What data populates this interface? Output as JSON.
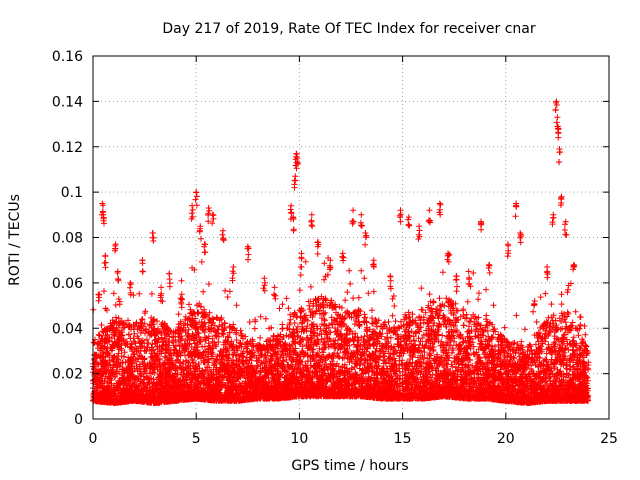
{
  "chart_data": {
    "type": "scatter",
    "title": "Day 217 of 2019, Rate Of TEC Index for receiver cnar",
    "xlabel": "GPS time / hours",
    "ylabel": "ROTI / TECUs",
    "xlim": [
      0,
      25
    ],
    "ylim": [
      0,
      0.16
    ],
    "xticks": [
      0,
      5,
      10,
      15,
      20,
      25
    ],
    "yticks": [
      0,
      0.02,
      0.04,
      0.06,
      0.08,
      0.1,
      0.12,
      0.14,
      0.16
    ],
    "xtick_labels": [
      "0",
      "5",
      "10",
      "15",
      "20",
      "25"
    ],
    "ytick_labels": [
      "0",
      "0.02",
      "0.04",
      "0.06",
      "0.08",
      "0.1",
      "0.12",
      "0.14",
      "0.16"
    ],
    "marker": "+",
    "color": "#ff0000",
    "grid": true,
    "series": [
      {
        "name": "ROTI",
        "points": [
          [
            0.1,
            0.025
          ],
          [
            0.3,
            0.055
          ],
          [
            0.45,
            0.095
          ],
          [
            0.5,
            0.09
          ],
          [
            0.6,
            0.072
          ],
          [
            1.1,
            0.077
          ],
          [
            1.2,
            0.065
          ],
          [
            1.8,
            0.06
          ],
          [
            2.4,
            0.07
          ],
          [
            2.9,
            0.082
          ],
          [
            3.3,
            0.058
          ],
          [
            3.7,
            0.064
          ],
          [
            4.3,
            0.055
          ],
          [
            4.8,
            0.094
          ],
          [
            5.0,
            0.1
          ],
          [
            5.2,
            0.085
          ],
          [
            5.4,
            0.077
          ],
          [
            5.6,
            0.093
          ],
          [
            5.8,
            0.09
          ],
          [
            6.3,
            0.083
          ],
          [
            6.8,
            0.067
          ],
          [
            7.5,
            0.076
          ],
          [
            8.3,
            0.062
          ],
          [
            8.8,
            0.058
          ],
          [
            9.6,
            0.094
          ],
          [
            9.7,
            0.089
          ],
          [
            9.8,
            0.107
          ],
          [
            9.85,
            0.117
          ],
          [
            9.9,
            0.115
          ],
          [
            10.1,
            0.073
          ],
          [
            10.6,
            0.09
          ],
          [
            10.9,
            0.078
          ],
          [
            11.5,
            0.07
          ],
          [
            12.1,
            0.073
          ],
          [
            12.6,
            0.092
          ],
          [
            13.0,
            0.09
          ],
          [
            13.2,
            0.082
          ],
          [
            13.6,
            0.07
          ],
          [
            14.4,
            0.063
          ],
          [
            14.9,
            0.092
          ],
          [
            15.3,
            0.089
          ],
          [
            15.8,
            0.085
          ],
          [
            16.3,
            0.092
          ],
          [
            16.8,
            0.095
          ],
          [
            17.2,
            0.073
          ],
          [
            17.6,
            0.063
          ],
          [
            18.2,
            0.065
          ],
          [
            18.8,
            0.087
          ],
          [
            19.2,
            0.068
          ],
          [
            20.1,
            0.077
          ],
          [
            20.5,
            0.095
          ],
          [
            20.7,
            0.082
          ],
          [
            21.4,
            0.052
          ],
          [
            22.0,
            0.067
          ],
          [
            22.3,
            0.09
          ],
          [
            22.45,
            0.14
          ],
          [
            22.5,
            0.133
          ],
          [
            22.55,
            0.128
          ],
          [
            22.6,
            0.119
          ],
          [
            22.7,
            0.098
          ],
          [
            22.9,
            0.087
          ],
          [
            23.3,
            0.068
          ],
          [
            23.6,
            0.045
          ],
          [
            23.9,
            0.032
          ]
        ],
        "dense_band_envelope": {
          "x": [
            0,
            1,
            2,
            3,
            4,
            5,
            6,
            7,
            8,
            9,
            10,
            11,
            12,
            13,
            14,
            15,
            16,
            17,
            18,
            19,
            20,
            21,
            22,
            23,
            24
          ],
          "typical_upper": [
            0.035,
            0.045,
            0.043,
            0.045,
            0.04,
            0.052,
            0.045,
            0.04,
            0.033,
            0.038,
            0.05,
            0.055,
            0.05,
            0.048,
            0.042,
            0.045,
            0.05,
            0.055,
            0.048,
            0.045,
            0.035,
            0.032,
            0.045,
            0.048,
            0.03
          ],
          "typical_lower": [
            0.008,
            0.007,
            0.008,
            0.007,
            0.008,
            0.009,
            0.008,
            0.008,
            0.009,
            0.009,
            0.01,
            0.01,
            0.01,
            0.01,
            0.009,
            0.009,
            0.009,
            0.01,
            0.009,
            0.009,
            0.008,
            0.007,
            0.008,
            0.008,
            0.008
          ]
        }
      }
    ]
  }
}
